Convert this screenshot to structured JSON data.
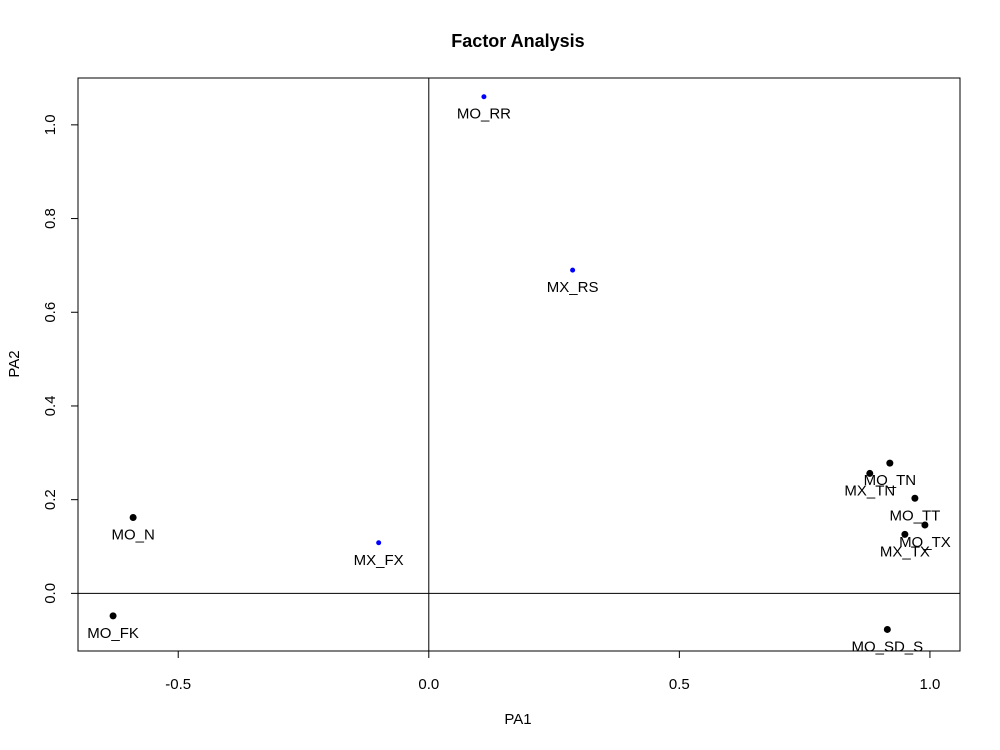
{
  "chart_data": {
    "type": "scatter",
    "title": "Factor Analysis",
    "xlabel": "PA1",
    "ylabel": "PA2",
    "xlim": [
      -0.7,
      1.06
    ],
    "ylim": [
      -0.123,
      1.1
    ],
    "xticks": [
      -0.5,
      0.0,
      0.5,
      1.0
    ],
    "xtick_labels": [
      "-0.5",
      "0.0",
      "0.5",
      "1.0"
    ],
    "yticks": [
      0.0,
      0.2,
      0.4,
      0.6,
      0.8,
      1.0
    ],
    "ytick_labels": [
      "0.0",
      "0.2",
      "0.4",
      "0.6",
      "0.8",
      "1.0"
    ],
    "reference_lines": {
      "x": 0,
      "y": 0
    },
    "grid": false,
    "colors": {
      "black": "#000000",
      "blue": "#0000ff"
    },
    "points": [
      {
        "label": "MO_RR",
        "x": 0.11,
        "y": 1.06,
        "color": "blue"
      },
      {
        "label": "MX_RS",
        "x": 0.287,
        "y": 0.69,
        "color": "blue"
      },
      {
        "label": "MX_FX",
        "x": -0.1,
        "y": 0.108,
        "color": "blue"
      },
      {
        "label": "MO_N",
        "x": -0.59,
        "y": 0.162,
        "color": "black"
      },
      {
        "label": "MO_FK",
        "x": -0.63,
        "y": -0.048,
        "color": "black"
      },
      {
        "label": "MO_TN",
        "x": 0.92,
        "y": 0.278,
        "color": "black"
      },
      {
        "label": "MX_TN",
        "x": 0.88,
        "y": 0.256,
        "color": "black"
      },
      {
        "label": "MO_TT",
        "x": 0.97,
        "y": 0.203,
        "color": "black"
      },
      {
        "label": "MO_TX",
        "x": 0.99,
        "y": 0.146,
        "color": "black"
      },
      {
        "label": "MX_TX",
        "x": 0.95,
        "y": 0.126,
        "color": "black"
      },
      {
        "label": "MO_SD_S",
        "x": 0.915,
        "y": -0.077,
        "color": "black"
      }
    ]
  }
}
